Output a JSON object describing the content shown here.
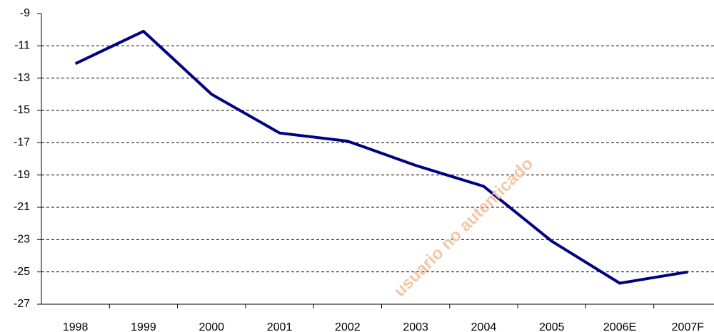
{
  "chart_data": {
    "type": "line",
    "categories": [
      "1998",
      "1999",
      "2000",
      "2001",
      "2002",
      "2003",
      "2004",
      "2005",
      "2006E",
      "2007F"
    ],
    "series": [
      {
        "name": null,
        "color": "#000080",
        "values": [
          -12.1,
          -10.1,
          -14.0,
          -16.4,
          -16.9,
          -18.4,
          -19.7,
          -23.1,
          -25.7,
          -25.0
        ]
      }
    ],
    "ylim": [
      -27,
      -9
    ],
    "yticks": [
      -27,
      -25,
      -23,
      -21,
      -19,
      -17,
      -15,
      -13,
      -11,
      -9
    ],
    "grid": true,
    "watermark": "usuario no autenticado"
  }
}
